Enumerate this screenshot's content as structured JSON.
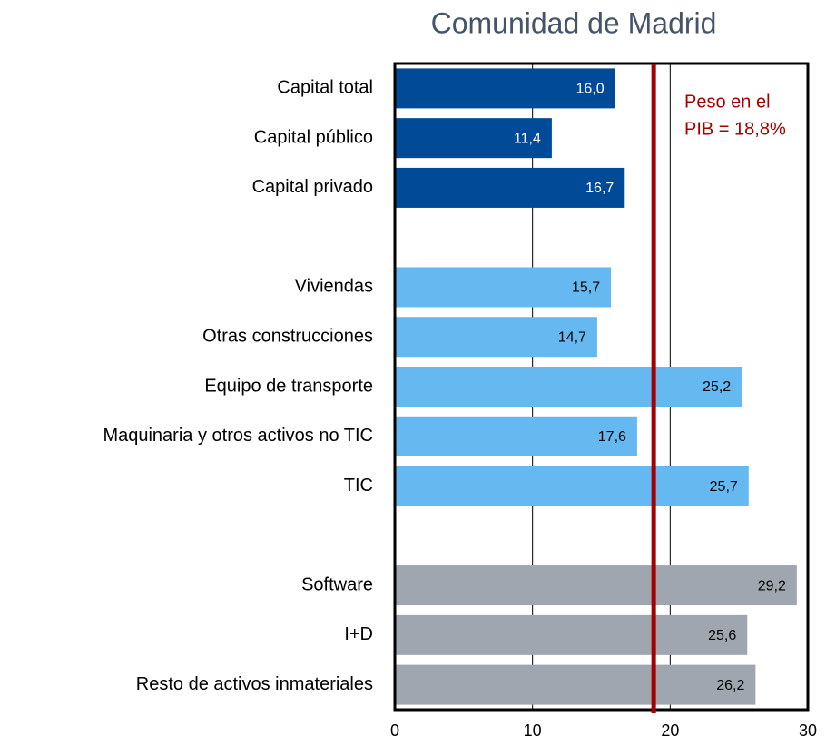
{
  "chart_data": {
    "type": "hbar",
    "title": "Comunidad de Madrid",
    "categories": [
      "Capital total",
      "Capital público",
      "Capital privado",
      null,
      "Viviendas",
      "Otras construcciones",
      "Equipo de transporte",
      "Maquinaria y otros activos no TIC",
      "TIC",
      null,
      "Software",
      "I+D",
      "Resto de activos inmateriales"
    ],
    "values": [
      16.0,
      11.4,
      16.7,
      null,
      15.7,
      14.7,
      25.2,
      17.6,
      25.7,
      null,
      29.2,
      25.6,
      26.2
    ],
    "value_labels": [
      "16,0",
      "11,4",
      "16,7",
      null,
      "15,7",
      "14,7",
      "25,2",
      "17,6",
      "25,7",
      null,
      "29,2",
      "25,6",
      "26,2"
    ],
    "colors": [
      "#004a97",
      "#004a97",
      "#004a97",
      null,
      "#66b8f0",
      "#66b8f0",
      "#66b8f0",
      "#66b8f0",
      "#66b8f0",
      null,
      "#a0a6b0",
      "#a0a6b0",
      "#a0a6b0"
    ],
    "label_colors": [
      "#ffffff",
      "#ffffff",
      "#ffffff",
      null,
      "#000000",
      "#000000",
      "#000000",
      "#000000",
      "#000000",
      null,
      "#000000",
      "#000000",
      "#000000"
    ],
    "xlim": [
      0,
      30
    ],
    "xticks": [
      0,
      10,
      20,
      30
    ],
    "grid": true,
    "reference_line": {
      "value": 18.8,
      "label": [
        "Peso en el",
        "PIB = 18,8%"
      ],
      "color": "#a50000"
    }
  }
}
